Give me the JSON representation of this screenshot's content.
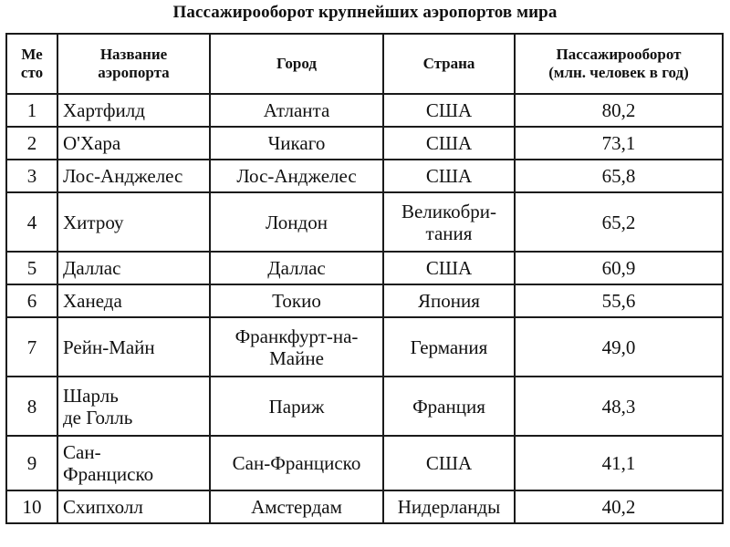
{
  "title": "Пассажирооборот крупнейших аэропортов мира",
  "table": {
    "headers": {
      "rank": "Ме\nсто",
      "name": "Название\nаэропорта",
      "city": "Город",
      "country": "Страна",
      "traffic": "Пассажирооборот\n(млн. человек в год)"
    },
    "rows": [
      {
        "rank": "1",
        "name": "Хартфилд",
        "city": "Атланта",
        "country": "США",
        "traffic": "80,2"
      },
      {
        "rank": "2",
        "name": "О'Хара",
        "city": "Чикаго",
        "country": "США",
        "traffic": "73,1"
      },
      {
        "rank": "3",
        "name": "Лос-Анджелес",
        "city": "Лос-Анджелес",
        "country": "США",
        "traffic": "65,8"
      },
      {
        "rank": "4",
        "name": "Хитроу",
        "city": "Лондон",
        "country": "Великобри-\nтания",
        "traffic": "65,2"
      },
      {
        "rank": "5",
        "name": "Даллас",
        "city": "Даллас",
        "country": "США",
        "traffic": "60,9"
      },
      {
        "rank": "6",
        "name": "Ханеда",
        "city": "Токио",
        "country": "Япония",
        "traffic": "55,6"
      },
      {
        "rank": "7",
        "name": "Рейн-Майн",
        "city": "Франкфурт-на-\nМайне",
        "country": "Германия",
        "traffic": "49,0"
      },
      {
        "rank": "8",
        "name": "Шарль\nде Голль",
        "city": "Париж",
        "country": "Франция",
        "traffic": "48,3"
      },
      {
        "rank": "9",
        "name": "Сан-\nФранциско",
        "city": "Сан-Франциско",
        "country": "США",
        "traffic": "41,1"
      },
      {
        "rank": "10",
        "name": "Схипхолл",
        "city": "Амстердам",
        "country": "Нидерланды",
        "traffic": "40,2"
      }
    ]
  }
}
